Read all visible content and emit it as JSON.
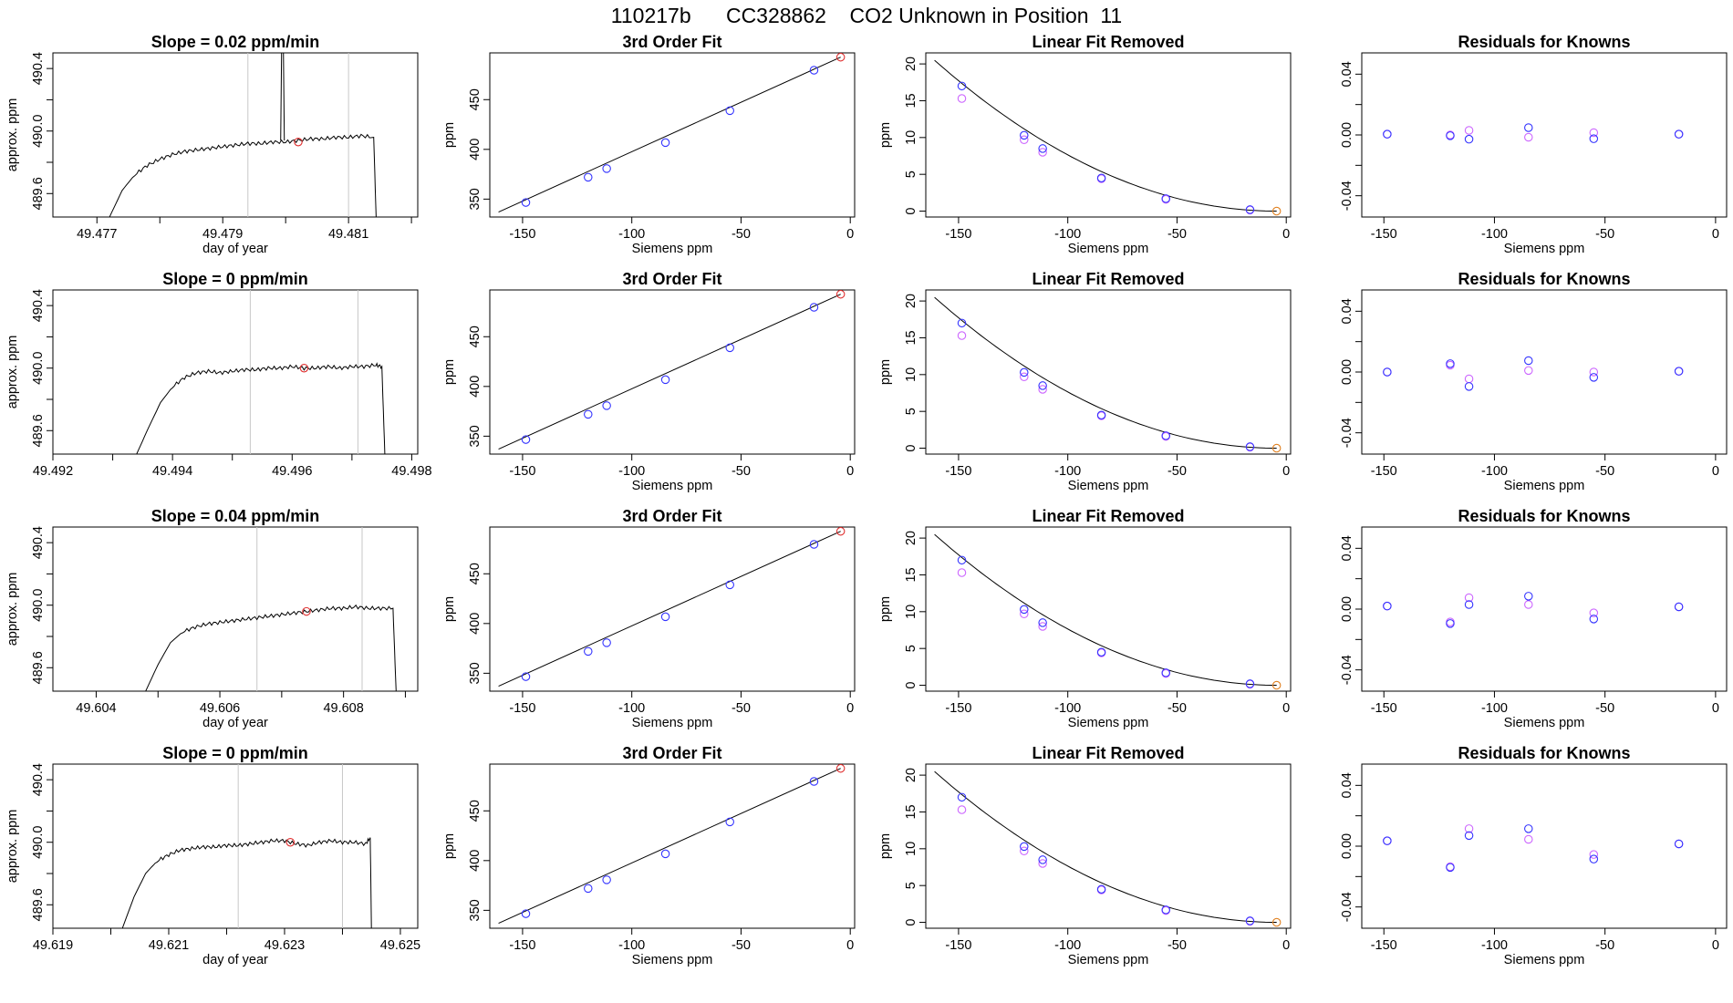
{
  "title": "110217b      CC328862    CO2 Unknown in Position  11",
  "colors": {
    "line": "#000000",
    "known_point": "#3333ff",
    "unknown_point": "#e03030",
    "alt_point": "#cc66ff",
    "origin_point": "#e08020",
    "window_marker": "#c8c8c8"
  },
  "chart_data": [
    {
      "type": "line",
      "row": 0,
      "col": 0,
      "title": "Slope =  0.02  ppm/min",
      "xlabel": "day of year",
      "ylabel": "approx. ppm",
      "xlim": [
        49.4763,
        49.4821
      ],
      "ylim": [
        489.45,
        490.5
      ],
      "xticks": [
        49.477,
        49.478,
        49.479,
        49.48,
        49.481,
        49.482
      ],
      "xtick_labels": [
        "49.477",
        "",
        "49.479",
        "",
        "49.481",
        ""
      ],
      "yticks": [
        489.6,
        489.8,
        490.0,
        490.2,
        490.4
      ],
      "ytick_labels": [
        "489.6",
        "",
        "490.0",
        "",
        "490.4"
      ],
      "window": [
        49.4794,
        49.481
      ],
      "unknown_point": {
        "x": 49.4802,
        "y": 489.93
      },
      "spike": {
        "x": 49.47995,
        "y": 490.8
      },
      "trace": [
        [
          49.4771,
          489.3
        ],
        [
          49.4772,
          489.45
        ],
        [
          49.4774,
          489.62
        ],
        [
          49.4776,
          489.72
        ],
        [
          49.4778,
          489.78
        ],
        [
          49.478,
          489.82
        ],
        [
          49.4782,
          489.85
        ],
        [
          49.4784,
          489.87
        ],
        [
          49.4786,
          489.88
        ],
        [
          49.4788,
          489.89
        ],
        [
          49.479,
          489.9
        ],
        [
          49.4792,
          489.91
        ],
        [
          49.4794,
          489.92
        ],
        [
          49.4796,
          489.92
        ],
        [
          49.4798,
          489.93
        ],
        [
          49.48,
          489.93
        ],
        [
          49.4802,
          489.94
        ],
        [
          49.4804,
          489.95
        ],
        [
          49.4806,
          489.95
        ],
        [
          49.4808,
          489.96
        ],
        [
          49.481,
          489.96
        ],
        [
          49.4812,
          489.97
        ],
        [
          49.4814,
          489.96
        ],
        [
          49.48145,
          489.3
        ]
      ]
    },
    {
      "type": "scatter",
      "row": 0,
      "col": 1,
      "title": "3rd Order Fit",
      "xlabel": "Siemens ppm",
      "ylabel": "ppm",
      "xlim": [
        -165,
        2
      ],
      "ylim": [
        332,
        497
      ],
      "xticks": [
        -150,
        -100,
        -50,
        0
      ],
      "yticks": [
        350,
        400,
        450
      ],
      "known_x": [
        -148.5,
        -120.0,
        -111.5,
        -84.6,
        -55.1,
        -16.6
      ],
      "known_y": [
        346.6,
        372.0,
        380.7,
        406.8,
        438.9,
        479.6
      ],
      "unknown_point": {
        "x": -4.4,
        "y": 492.7
      },
      "fit_line": [
        [
          -161,
          337.0
        ],
        [
          -4.4,
          492.7
        ]
      ]
    },
    {
      "type": "scatter",
      "row": 0,
      "col": 2,
      "title": "Linear Fit Removed",
      "xlabel": "Siemens ppm",
      "ylabel": "ppm",
      "xlim": [
        -165,
        2
      ],
      "ylim": [
        -0.8,
        21.5
      ],
      "xticks": [
        -150,
        -100,
        -50,
        0
      ],
      "yticks": [
        0,
        5,
        10,
        15,
        20
      ],
      "known_x": [
        -148.5,
        -120.0,
        -111.5,
        -84.6,
        -55.1,
        -16.6
      ],
      "known_y": [
        17.0,
        10.3,
        8.5,
        4.5,
        1.7,
        0.2
      ],
      "alt_y": [
        15.3,
        9.7,
        8.0,
        4.4,
        1.6,
        0.15
      ],
      "origin_point": {
        "x": -4.4,
        "y": 0.0
      },
      "curve": {
        "x_start": -161,
        "x_end": -4.4,
        "y_at_start": 20.5
      }
    },
    {
      "type": "scatter",
      "row": 0,
      "col": 3,
      "title": "Residuals for Knowns",
      "xlabel": "Siemens ppm",
      "ylabel": "",
      "xlim": [
        -160,
        5
      ],
      "ylim": [
        -0.054,
        0.054
      ],
      "xticks": [
        -150,
        -100,
        -50,
        0
      ],
      "yticks": [
        -0.04,
        -0.02,
        0.0,
        0.02,
        0.04
      ],
      "ytick_labels": [
        "-0.04",
        "",
        "0.00",
        "",
        "0.04"
      ],
      "known_x": [
        -148.5,
        -120.0,
        -111.5,
        -84.6,
        -55.1,
        -16.6
      ],
      "known_y": [
        0.0005,
        -0.0005,
        -0.0028,
        0.0048,
        -0.0025,
        0.0005
      ],
      "alt_y": [
        0.0005,
        0.0,
        0.003,
        -0.0015,
        0.0015,
        0.0005
      ]
    },
    {
      "type": "line",
      "row": 1,
      "col": 0,
      "title": "Slope =  0  ppm/min",
      "xlabel": "",
      "ylabel": "approx. ppm",
      "xlim": [
        49.492,
        49.4981
      ],
      "ylim": [
        489.45,
        490.5
      ],
      "xticks": [
        49.492,
        49.493,
        49.494,
        49.495,
        49.496,
        49.497,
        49.498
      ],
      "xtick_labels": [
        "49.492",
        "",
        "49.494",
        "",
        "49.496",
        "",
        "49.498"
      ],
      "yticks": [
        489.6,
        489.8,
        490.0,
        490.2,
        490.4
      ],
      "ytick_labels": [
        "489.6",
        "",
        "490.0",
        "",
        "490.4"
      ],
      "window": [
        49.4953,
        49.4971
      ],
      "unknown_point": {
        "x": 49.4962,
        "y": 490.0
      },
      "trace": [
        [
          49.4934,
          489.45
        ],
        [
          49.4936,
          489.62
        ],
        [
          49.4938,
          489.78
        ],
        [
          49.494,
          489.88
        ],
        [
          49.4942,
          489.94
        ],
        [
          49.4944,
          489.97
        ],
        [
          49.4946,
          489.98
        ],
        [
          49.4948,
          489.97
        ],
        [
          49.495,
          489.98
        ],
        [
          49.4952,
          489.99
        ],
        [
          49.4954,
          489.99
        ],
        [
          49.4956,
          490.0
        ],
        [
          49.4958,
          490.0
        ],
        [
          49.496,
          490.01
        ],
        [
          49.4962,
          490.0
        ],
        [
          49.4964,
          490.0
        ],
        [
          49.4966,
          490.01
        ],
        [
          49.4968,
          490.0
        ],
        [
          49.497,
          490.01
        ],
        [
          49.4972,
          490.01
        ],
        [
          49.4974,
          490.02
        ],
        [
          49.4975,
          490.01
        ],
        [
          49.49755,
          489.45
        ]
      ]
    },
    {
      "type": "scatter",
      "row": 1,
      "col": 1,
      "title": "3rd Order Fit",
      "xlabel": "Siemens ppm",
      "ylabel": "ppm",
      "xlim": [
        -165,
        2
      ],
      "ylim": [
        332,
        497
      ],
      "xticks": [
        -150,
        -100,
        -50,
        0
      ],
      "yticks": [
        350,
        400,
        450
      ],
      "known_x": [
        -148.5,
        -120.0,
        -111.5,
        -84.6,
        -55.1,
        -16.6
      ],
      "known_y": [
        346.6,
        372.0,
        380.7,
        406.8,
        438.9,
        479.6
      ],
      "unknown_point": {
        "x": -4.4,
        "y": 492.7
      },
      "fit_line": [
        [
          -161,
          337.0
        ],
        [
          -4.4,
          492.7
        ]
      ]
    },
    {
      "type": "scatter",
      "row": 1,
      "col": 2,
      "title": "Linear Fit Removed",
      "xlabel": "Siemens ppm",
      "ylabel": "ppm",
      "xlim": [
        -165,
        2
      ],
      "ylim": [
        -0.8,
        21.5
      ],
      "xticks": [
        -150,
        -100,
        -50,
        0
      ],
      "yticks": [
        0,
        5,
        10,
        15,
        20
      ],
      "known_x": [
        -148.5,
        -120.0,
        -111.5,
        -84.6,
        -55.1,
        -16.6
      ],
      "known_y": [
        17.0,
        10.3,
        8.5,
        4.5,
        1.7,
        0.2
      ],
      "alt_y": [
        15.3,
        9.7,
        8.0,
        4.4,
        1.6,
        0.15
      ],
      "origin_point": {
        "x": -4.4,
        "y": 0.0
      },
      "curve": {
        "x_start": -161,
        "x_end": -4.4,
        "y_at_start": 20.5
      }
    },
    {
      "type": "scatter",
      "row": 1,
      "col": 3,
      "title": "Residuals for Knowns",
      "xlabel": "Siemens ppm",
      "ylabel": "",
      "xlim": [
        -160,
        5
      ],
      "ylim": [
        -0.054,
        0.054
      ],
      "xticks": [
        -150,
        -100,
        -50,
        0
      ],
      "yticks": [
        -0.04,
        -0.02,
        0.0,
        0.02,
        0.04
      ],
      "ytick_labels": [
        "-0.04",
        "",
        "0.00",
        "",
        "0.04"
      ],
      "known_x": [
        -148.5,
        -120.0,
        -111.5,
        -84.6,
        -55.1,
        -16.6
      ],
      "known_y": [
        0.0,
        0.0055,
        -0.0095,
        0.0075,
        -0.0035,
        0.0005
      ],
      "alt_y": [
        0.0,
        0.0045,
        -0.0045,
        0.001,
        0.0,
        0.0005
      ]
    },
    {
      "type": "line",
      "row": 2,
      "col": 0,
      "title": "Slope =  0.04  ppm/min",
      "xlabel": "day of year",
      "ylabel": "approx. ppm",
      "xlim": [
        49.6033,
        49.6092
      ],
      "ylim": [
        489.45,
        490.5
      ],
      "xticks": [
        49.604,
        49.605,
        49.606,
        49.607,
        49.608,
        49.609
      ],
      "xtick_labels": [
        "49.604",
        "",
        "49.606",
        "",
        "49.608",
        ""
      ],
      "yticks": [
        489.6,
        489.8,
        490.0,
        490.2,
        490.4
      ],
      "ytick_labels": [
        "489.6",
        "",
        "490.0",
        "",
        "490.4"
      ],
      "window": [
        49.6066,
        49.6083
      ],
      "unknown_point": {
        "x": 49.6074,
        "y": 489.96
      },
      "trace": [
        [
          49.6048,
          489.45
        ],
        [
          49.605,
          489.62
        ],
        [
          49.6052,
          489.76
        ],
        [
          49.6054,
          489.83
        ],
        [
          49.6056,
          489.86
        ],
        [
          49.6058,
          489.88
        ],
        [
          49.606,
          489.89
        ],
        [
          49.6062,
          489.9
        ],
        [
          49.6064,
          489.91
        ],
        [
          49.6066,
          489.92
        ],
        [
          49.6068,
          489.93
        ],
        [
          49.607,
          489.94
        ],
        [
          49.6072,
          489.95
        ],
        [
          49.6074,
          489.96
        ],
        [
          49.6076,
          489.97
        ],
        [
          49.6078,
          489.98
        ],
        [
          49.608,
          489.98
        ],
        [
          49.6082,
          489.99
        ],
        [
          49.6084,
          489.98
        ],
        [
          49.6086,
          489.98
        ],
        [
          49.6088,
          489.98
        ],
        [
          49.60885,
          489.45
        ]
      ]
    },
    {
      "type": "scatter",
      "row": 2,
      "col": 1,
      "title": "3rd Order Fit",
      "xlabel": "Siemens ppm",
      "ylabel": "ppm",
      "xlim": [
        -165,
        2
      ],
      "ylim": [
        332,
        497
      ],
      "xticks": [
        -150,
        -100,
        -50,
        0
      ],
      "yticks": [
        350,
        400,
        450
      ],
      "known_x": [
        -148.5,
        -120.0,
        -111.5,
        -84.6,
        -55.1,
        -16.6
      ],
      "known_y": [
        346.6,
        372.0,
        380.7,
        406.8,
        438.9,
        479.6
      ],
      "unknown_point": {
        "x": -4.4,
        "y": 492.7
      },
      "fit_line": [
        [
          -161,
          337.0
        ],
        [
          -4.4,
          492.7
        ]
      ]
    },
    {
      "type": "scatter",
      "row": 2,
      "col": 2,
      "title": "Linear Fit Removed",
      "xlabel": "Siemens ppm",
      "ylabel": "ppm",
      "xlim": [
        -165,
        2
      ],
      "ylim": [
        -0.8,
        21.5
      ],
      "xticks": [
        -150,
        -100,
        -50,
        0
      ],
      "yticks": [
        0,
        5,
        10,
        15,
        20
      ],
      "known_x": [
        -148.5,
        -120.0,
        -111.5,
        -84.6,
        -55.1,
        -16.6
      ],
      "known_y": [
        17.0,
        10.3,
        8.5,
        4.5,
        1.7,
        0.2
      ],
      "alt_y": [
        15.3,
        9.7,
        8.0,
        4.4,
        1.6,
        0.15
      ],
      "origin_point": {
        "x": -4.4,
        "y": 0.0
      },
      "curve": {
        "x_start": -161,
        "x_end": -4.4,
        "y_at_start": 20.5
      }
    },
    {
      "type": "scatter",
      "row": 2,
      "col": 3,
      "title": "Residuals for Knowns",
      "xlabel": "Siemens ppm",
      "ylabel": "",
      "xlim": [
        -160,
        5
      ],
      "ylim": [
        -0.054,
        0.054
      ],
      "xticks": [
        -150,
        -100,
        -50,
        0
      ],
      "yticks": [
        -0.04,
        -0.02,
        0.0,
        0.02,
        0.04
      ],
      "ytick_labels": [
        "-0.04",
        "",
        "0.00",
        "",
        "0.04"
      ],
      "known_x": [
        -148.5,
        -120.0,
        -111.5,
        -84.6,
        -55.1,
        -16.6
      ],
      "known_y": [
        0.002,
        -0.0095,
        0.003,
        0.0085,
        -0.0065,
        0.0015
      ],
      "alt_y": [
        0.002,
        -0.0085,
        0.0075,
        0.003,
        -0.0025,
        0.0015
      ]
    },
    {
      "type": "line",
      "row": 3,
      "col": 0,
      "title": "Slope =  0  ppm/min",
      "xlabel": "day of year",
      "ylabel": "approx. ppm",
      "xlim": [
        49.619,
        49.6253
      ],
      "ylim": [
        489.45,
        490.5
      ],
      "xticks": [
        49.619,
        49.62,
        49.621,
        49.622,
        49.623,
        49.624,
        49.625
      ],
      "xtick_labels": [
        "49.619",
        "",
        "49.621",
        "",
        "49.623",
        "",
        "49.625"
      ],
      "yticks": [
        489.6,
        489.8,
        490.0,
        490.2,
        490.4
      ],
      "ytick_labels": [
        "489.6",
        "",
        "490.0",
        "",
        "490.4"
      ],
      "window": [
        49.6222,
        49.624
      ],
      "unknown_point": {
        "x": 49.6231,
        "y": 490.0
      },
      "trace": [
        [
          49.6202,
          489.45
        ],
        [
          49.6204,
          489.65
        ],
        [
          49.6206,
          489.8
        ],
        [
          49.6208,
          489.88
        ],
        [
          49.621,
          489.92
        ],
        [
          49.6212,
          489.95
        ],
        [
          49.6214,
          489.96
        ],
        [
          49.6216,
          489.97
        ],
        [
          49.6218,
          489.97
        ],
        [
          49.622,
          489.98
        ],
        [
          49.6222,
          489.98
        ],
        [
          49.6224,
          489.99
        ],
        [
          49.6226,
          490.0
        ],
        [
          49.6228,
          490.01
        ],
        [
          49.623,
          490.01
        ],
        [
          49.6232,
          489.99
        ],
        [
          49.6234,
          489.98
        ],
        [
          49.6236,
          490.0
        ],
        [
          49.6238,
          490.01
        ],
        [
          49.624,
          490.0
        ],
        [
          49.6242,
          490.0
        ],
        [
          49.6244,
          489.99
        ],
        [
          49.62448,
          490.03
        ],
        [
          49.6245,
          489.45
        ]
      ]
    },
    {
      "type": "scatter",
      "row": 3,
      "col": 1,
      "title": "3rd Order Fit",
      "xlabel": "Siemens ppm",
      "ylabel": "ppm",
      "xlim": [
        -165,
        2
      ],
      "ylim": [
        332,
        497
      ],
      "xticks": [
        -150,
        -100,
        -50,
        0
      ],
      "yticks": [
        350,
        400,
        450
      ],
      "known_x": [
        -148.5,
        -120.0,
        -111.5,
        -84.6,
        -55.1,
        -16.6
      ],
      "known_y": [
        346.6,
        372.0,
        380.7,
        406.8,
        438.9,
        479.6
      ],
      "unknown_point": {
        "x": -4.4,
        "y": 492.7
      },
      "fit_line": [
        [
          -161,
          337.0
        ],
        [
          -4.4,
          492.7
        ]
      ]
    },
    {
      "type": "scatter",
      "row": 3,
      "col": 2,
      "title": "Linear Fit Removed",
      "xlabel": "Siemens ppm",
      "ylabel": "ppm",
      "xlim": [
        -165,
        2
      ],
      "ylim": [
        -0.8,
        21.5
      ],
      "xticks": [
        -150,
        -100,
        -50,
        0
      ],
      "yticks": [
        0,
        5,
        10,
        15,
        20
      ],
      "known_x": [
        -148.5,
        -120.0,
        -111.5,
        -84.6,
        -55.1,
        -16.6
      ],
      "known_y": [
        17.0,
        10.3,
        8.5,
        4.5,
        1.7,
        0.2
      ],
      "alt_y": [
        15.3,
        9.7,
        8.0,
        4.4,
        1.6,
        0.15
      ],
      "origin_point": {
        "x": -4.4,
        "y": 0.0
      },
      "curve": {
        "x_start": -161,
        "x_end": -4.4,
        "y_at_start": 20.5
      }
    },
    {
      "type": "scatter",
      "row": 3,
      "col": 3,
      "title": "Residuals for Knowns",
      "xlabel": "Siemens ppm",
      "ylabel": "",
      "xlim": [
        -160,
        5
      ],
      "ylim": [
        -0.054,
        0.054
      ],
      "xticks": [
        -150,
        -100,
        -50,
        0
      ],
      "yticks": [
        -0.04,
        -0.02,
        0.0,
        0.02,
        0.04
      ],
      "ytick_labels": [
        "-0.04",
        "",
        "0.00",
        "",
        "0.04"
      ],
      "known_x": [
        -148.5,
        -120.0,
        -111.5,
        -84.6,
        -55.1,
        -16.6
      ],
      "known_y": [
        0.0035,
        -0.014,
        0.007,
        0.0115,
        -0.0085,
        0.0015
      ],
      "alt_y": [
        0.0035,
        -0.0135,
        0.0115,
        0.0045,
        -0.0055,
        0.0015
      ]
    }
  ]
}
